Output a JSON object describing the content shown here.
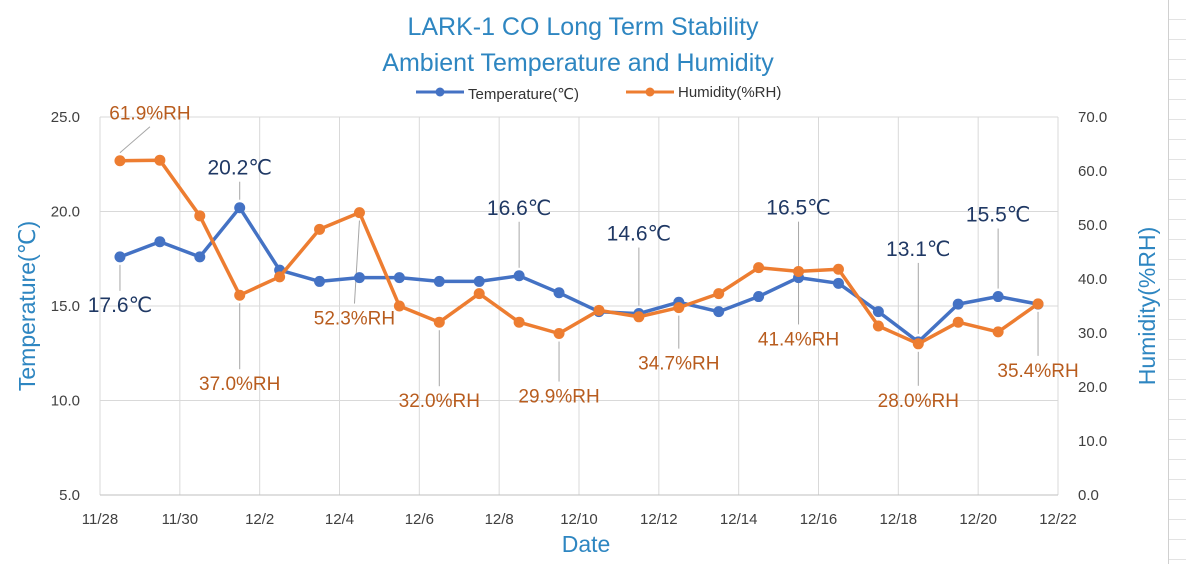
{
  "chart_data": {
    "type": "line",
    "title": "LARK-1 CO  Long Term Stability",
    "subtitle": "Ambient Temperature and Humidity",
    "xlabel": "Date",
    "ylabel_left": "Temperature(℃)",
    "ylabel_right": "Humidity(%RH)",
    "ylim_left": [
      5,
      25
    ],
    "ylim_right": [
      0,
      70
    ],
    "xlim_days": [
      0,
      24
    ],
    "x_ticks": [
      "11/28",
      "11/30",
      "12/2",
      "12/4",
      "12/6",
      "12/8",
      "12/10",
      "12/12",
      "12/14",
      "12/16",
      "12/18",
      "12/20",
      "12/22"
    ],
    "y_ticks_left": [
      "5.0",
      "10.0",
      "15.0",
      "20.0",
      "25.0"
    ],
    "y_ticks_right": [
      "0.0",
      "10.0",
      "20.0",
      "30.0",
      "40.0",
      "50.0",
      "60.0",
      "70.0"
    ],
    "grid": true,
    "legend_position": "top-center",
    "series": [
      {
        "name": "Temperature(℃)",
        "axis": "left",
        "color": "#4472C4",
        "x": [
          "11/28",
          "11/29",
          "11/30",
          "12/1",
          "12/2",
          "12/3",
          "12/4",
          "12/5",
          "12/6",
          "12/7",
          "12/8",
          "12/9",
          "12/10",
          "12/11",
          "12/12",
          "12/13",
          "12/14",
          "12/15",
          "12/16",
          "12/17",
          "12/18",
          "12/19",
          "12/20",
          "12/21"
        ],
        "values": [
          17.6,
          18.4,
          17.6,
          20.2,
          16.9,
          16.3,
          16.5,
          16.5,
          16.3,
          16.3,
          16.6,
          15.7,
          14.7,
          14.6,
          15.2,
          14.7,
          15.5,
          16.5,
          16.2,
          14.7,
          13.1,
          15.1,
          15.5,
          15.1
        ]
      },
      {
        "name": "Humidity(%RH)",
        "axis": "right",
        "color": "#ED7D31",
        "x": [
          "11/28",
          "11/29",
          "11/30",
          "12/1",
          "12/2",
          "12/3",
          "12/4",
          "12/5",
          "12/6",
          "12/7",
          "12/8",
          "12/9",
          "12/10",
          "12/11",
          "12/12",
          "12/13",
          "12/14",
          "12/15",
          "12/16",
          "12/17",
          "12/18",
          "12/19",
          "12/20",
          "12/21"
        ],
        "values": [
          61.9,
          62.0,
          51.7,
          37.0,
          40.4,
          49.2,
          52.3,
          35.0,
          32.0,
          37.3,
          32.0,
          29.9,
          34.2,
          33.0,
          34.7,
          37.3,
          42.1,
          41.4,
          41.8,
          31.3,
          28.0,
          32.0,
          30.2,
          35.4
        ]
      }
    ],
    "annotations": {
      "temperature": [
        {
          "index": 0,
          "label": "17.6℃"
        },
        {
          "index": 3,
          "label": "20.2℃"
        },
        {
          "index": 10,
          "label": "16.6℃"
        },
        {
          "index": 13,
          "label": "14.6℃"
        },
        {
          "index": 17,
          "label": "16.5℃"
        },
        {
          "index": 20,
          "label": "13.1℃"
        },
        {
          "index": 22,
          "label": "15.5℃"
        }
      ],
      "humidity": [
        {
          "index": 0,
          "label": "61.9%RH"
        },
        {
          "index": 3,
          "label": "37.0%RH"
        },
        {
          "index": 6,
          "label": "52.3%RH"
        },
        {
          "index": 8,
          "label": "32.0%RH"
        },
        {
          "index": 11,
          "label": "29.9%RH"
        },
        {
          "index": 14,
          "label": "34.7%RH"
        },
        {
          "index": 17,
          "label": "41.4%RH"
        },
        {
          "index": 20,
          "label": "28.0%RH"
        },
        {
          "index": 23,
          "label": "35.4%RH"
        }
      ]
    }
  }
}
